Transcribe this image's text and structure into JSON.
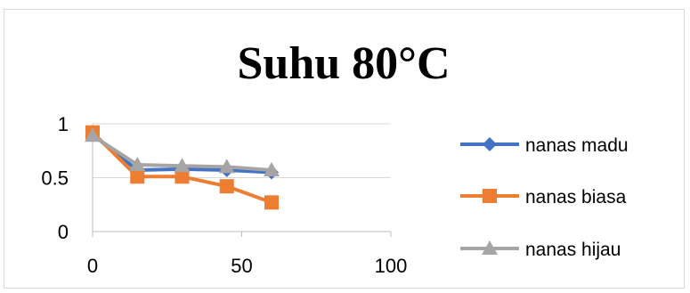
{
  "chart_data": {
    "type": "line",
    "title": "Suhu 80°C",
    "xlabel": "",
    "ylabel": "",
    "xlim": [
      0,
      100
    ],
    "ylim": [
      0,
      1
    ],
    "x_ticks": [
      0,
      50,
      100
    ],
    "y_ticks": [
      0,
      0.5,
      1
    ],
    "x_tick_labels": [
      "0",
      "50",
      "100"
    ],
    "y_tick_labels": [
      "0",
      "0.5",
      "1"
    ],
    "grid": "horizontal",
    "legend_position": "right",
    "series": [
      {
        "name": "nanas madu",
        "color": "#4472C4",
        "marker": "diamond",
        "x": [
          0,
          15,
          30,
          45,
          60
        ],
        "y": [
          0.9,
          0.57,
          0.58,
          0.57,
          0.55
        ]
      },
      {
        "name": "nanas biasa",
        "color": "#ED7D31",
        "marker": "square",
        "x": [
          0,
          15,
          30,
          45,
          60
        ],
        "y": [
          0.92,
          0.51,
          0.51,
          0.42,
          0.27
        ]
      },
      {
        "name": "nanas hijau",
        "color": "#A5A5A5",
        "marker": "triangle",
        "x": [
          0,
          15,
          30,
          45,
          60
        ],
        "y": [
          0.89,
          0.62,
          0.61,
          0.6,
          0.57
        ]
      }
    ]
  }
}
